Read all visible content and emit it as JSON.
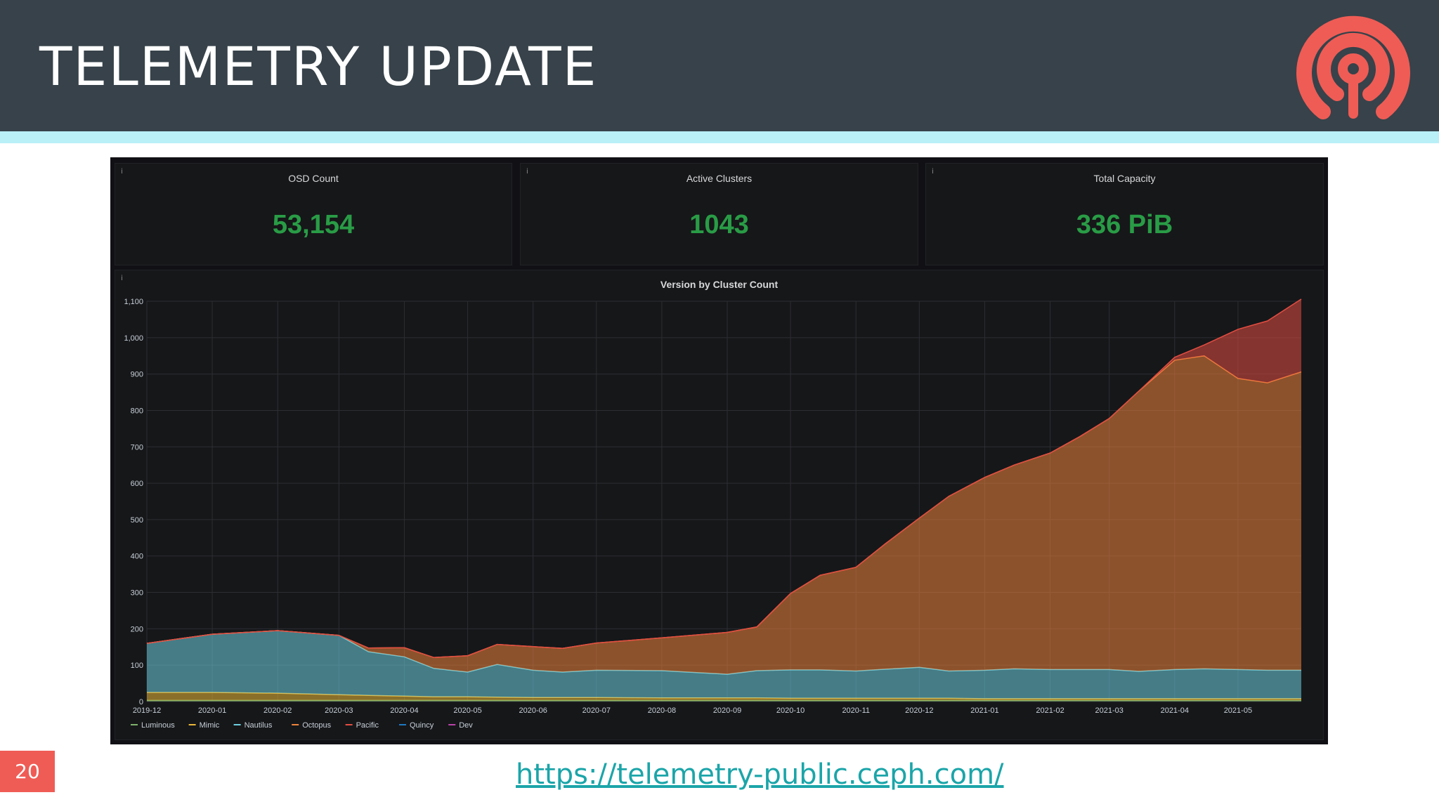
{
  "slide": {
    "title": "TELEMETRY UPDATE",
    "page_number": "20",
    "link": "https://telemetry-public.ceph.com/"
  },
  "colors": {
    "header_bg": "#37424a",
    "accent_bar": "#b9f0f8",
    "logo": "#ef5c55",
    "stat_value": "#299c46",
    "link": "#1ba5a9"
  },
  "icons": {
    "logo": "ceph-logo-icon",
    "panel_info": "info-icon"
  },
  "stats": [
    {
      "title": "OSD Count",
      "value": "53,154",
      "info": "i"
    },
    {
      "title": "Active Clusters",
      "value": "1043",
      "info": "i"
    },
    {
      "title": "Total Capacity",
      "value": "336 PiB",
      "info": "i"
    }
  ],
  "chart_data": {
    "type": "area",
    "stacked": true,
    "title": "Version by Cluster Count",
    "panel_info": "i",
    "x": [
      "2019-12-01",
      "2020-01-01",
      "2020-02-01",
      "2020-03-01",
      "2020-03-15",
      "2020-04-01",
      "2020-04-15",
      "2020-05-01",
      "2020-05-15",
      "2020-06-01",
      "2020-06-15",
      "2020-07-01",
      "2020-08-01",
      "2020-09-01",
      "2020-09-15",
      "2020-10-01",
      "2020-10-15",
      "2020-11-01",
      "2020-11-15",
      "2020-12-01",
      "2020-12-15",
      "2021-01-01",
      "2021-01-15",
      "2021-02-01",
      "2021-02-15",
      "2021-03-01",
      "2021-03-15",
      "2021-04-01",
      "2021-04-15",
      "2021-05-01",
      "2021-05-15",
      "2021-05-31"
    ],
    "x_ticks": [
      "2019-12",
      "2020-01",
      "2020-02",
      "2020-03",
      "2020-04",
      "2020-05",
      "2020-06",
      "2020-07",
      "2020-08",
      "2020-09",
      "2020-10",
      "2020-11",
      "2020-12",
      "2021-01",
      "2021-02",
      "2021-03",
      "2021-04",
      "2021-05"
    ],
    "ylim": [
      0,
      1100
    ],
    "y_ticks": [
      "0",
      "100",
      "200",
      "300",
      "400",
      "500",
      "600",
      "700",
      "800",
      "900",
      "1,000",
      "1,100"
    ],
    "grid": true,
    "legend_position": "bottom-left",
    "series": [
      {
        "name": "Luminous",
        "color": "#7eb26d",
        "values": [
          3,
          3,
          3,
          3,
          3,
          3,
          3,
          3,
          3,
          3,
          3,
          3,
          3,
          3,
          3,
          3,
          3,
          3,
          3,
          3,
          3,
          3,
          3,
          3,
          3,
          3,
          3,
          3,
          3,
          3,
          3,
          3
        ]
      },
      {
        "name": "Mimic",
        "color": "#eab839",
        "values": [
          22,
          22,
          20,
          16,
          14,
          12,
          10,
          10,
          9,
          8,
          8,
          8,
          7,
          7,
          7,
          6,
          6,
          6,
          6,
          6,
          6,
          5,
          5,
          5,
          5,
          5,
          5,
          5,
          5,
          5,
          5,
          5
        ]
      },
      {
        "name": "Nautilus",
        "color": "#6ed0e0",
        "values": [
          135,
          160,
          172,
          163,
          120,
          108,
          78,
          68,
          90,
          75,
          70,
          75,
          75,
          65,
          75,
          78,
          78,
          75,
          80,
          85,
          75,
          78,
          82,
          80,
          80,
          80,
          75,
          80,
          82,
          80,
          78,
          78
        ]
      },
      {
        "name": "Octopus",
        "color": "#ef843c",
        "values": [
          0,
          0,
          0,
          0,
          10,
          25,
          30,
          45,
          55,
          65,
          65,
          75,
          90,
          115,
          120,
          210,
          260,
          285,
          345,
          410,
          480,
          530,
          560,
          595,
          640,
          690,
          770,
          850,
          860,
          800,
          790,
          820
        ]
      },
      {
        "name": "Pacific",
        "color": "#e24d42",
        "values": [
          0,
          0,
          0,
          0,
          0,
          0,
          0,
          0,
          0,
          0,
          0,
          0,
          0,
          0,
          0,
          0,
          0,
          0,
          0,
          0,
          0,
          0,
          0,
          0,
          0,
          0,
          0,
          8,
          30,
          135,
          170,
          200
        ]
      },
      {
        "name": "Quincy",
        "color": "#1f78c1",
        "values": [
          0,
          0,
          0,
          0,
          0,
          0,
          0,
          0,
          0,
          0,
          0,
          0,
          0,
          0,
          0,
          0,
          0,
          0,
          0,
          0,
          0,
          0,
          0,
          0,
          0,
          0,
          0,
          0,
          0,
          0,
          0,
          0
        ]
      },
      {
        "name": "Dev",
        "color": "#ba43a9",
        "values": [
          0,
          0,
          0,
          0,
          0,
          0,
          0,
          0,
          0,
          0,
          0,
          0,
          0,
          0,
          0,
          0,
          0,
          0,
          0,
          0,
          0,
          0,
          0,
          0,
          0,
          0,
          0,
          0,
          0,
          0,
          0,
          0
        ]
      }
    ]
  }
}
